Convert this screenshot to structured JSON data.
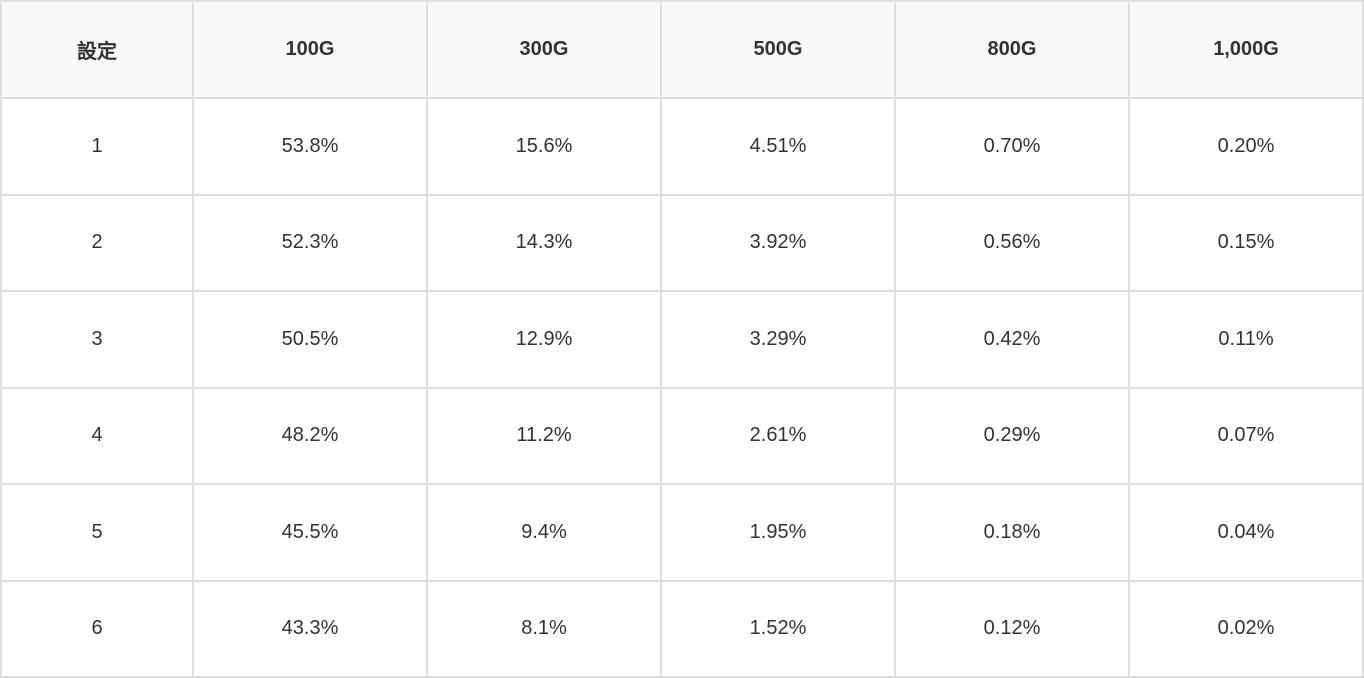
{
  "colors": {
    "header_bg": "#f8f8f8",
    "cell_bg": "#ffffff",
    "border": "#dedede",
    "text": "#333333"
  },
  "chart_data": {
    "type": "table",
    "title": "",
    "columns": [
      "設定",
      "100G",
      "300G",
      "500G",
      "800G",
      "1,000G"
    ],
    "rows": [
      [
        "1",
        "53.8%",
        "15.6%",
        "4.51%",
        "0.70%",
        "0.20%"
      ],
      [
        "2",
        "52.3%",
        "14.3%",
        "3.92%",
        "0.56%",
        "0.15%"
      ],
      [
        "3",
        "50.5%",
        "12.9%",
        "3.29%",
        "0.42%",
        "0.11%"
      ],
      [
        "4",
        "48.2%",
        "11.2%",
        "2.61%",
        "0.29%",
        "0.07%"
      ],
      [
        "5",
        "45.5%",
        "9.4%",
        "1.95%",
        "0.18%",
        "0.04%"
      ],
      [
        "6",
        "43.3%",
        "8.1%",
        "1.52%",
        "0.12%",
        "0.02%"
      ]
    ]
  }
}
